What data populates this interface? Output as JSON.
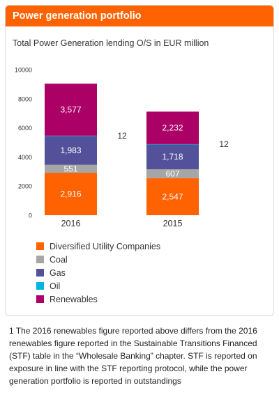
{
  "panel": {
    "title": "Power generation portfolio"
  },
  "chart_data": {
    "type": "bar",
    "stacked": true,
    "title": "Total Power Generation lending O/S in EUR million",
    "categories": [
      "2016",
      "2015"
    ],
    "yticks": [
      0,
      2000,
      4000,
      6000,
      8000,
      10000
    ],
    "ylim": [
      0,
      10000
    ],
    "series": [
      {
        "name": "Diversified Utility Companies",
        "color": "#ff6200",
        "values": [
          2916,
          2547
        ],
        "labels": [
          "2,916",
          "2,547"
        ]
      },
      {
        "name": "Coal",
        "color": "#a6a6a6",
        "values": [
          551,
          607
        ],
        "labels": [
          "551",
          "607"
        ]
      },
      {
        "name": "Gas",
        "color": "#525199",
        "values": [
          1983,
          1718
        ],
        "labels": [
          "1,983",
          "1,718"
        ]
      },
      {
        "name": "Oil",
        "color": "#00b5e2",
        "values": [
          12,
          12
        ],
        "labels": [
          "12",
          "12"
        ]
      },
      {
        "name": "Renewables",
        "color": "#ab0066",
        "values": [
          3577,
          2232
        ],
        "labels": [
          "3,577",
          "2,232"
        ]
      }
    ],
    "grid": false,
    "legend_position": "bottom"
  },
  "footnote": "1 The 2016 renewables figure reported above differs from the 2016 renewables figure reported in the Sustainable Transitions Financed (STF) table in the “Wholesale Banking” chapter. STF is reported on exposure in line with the STF reporting protocol, while the power generation portfolio is reported in outstandings"
}
